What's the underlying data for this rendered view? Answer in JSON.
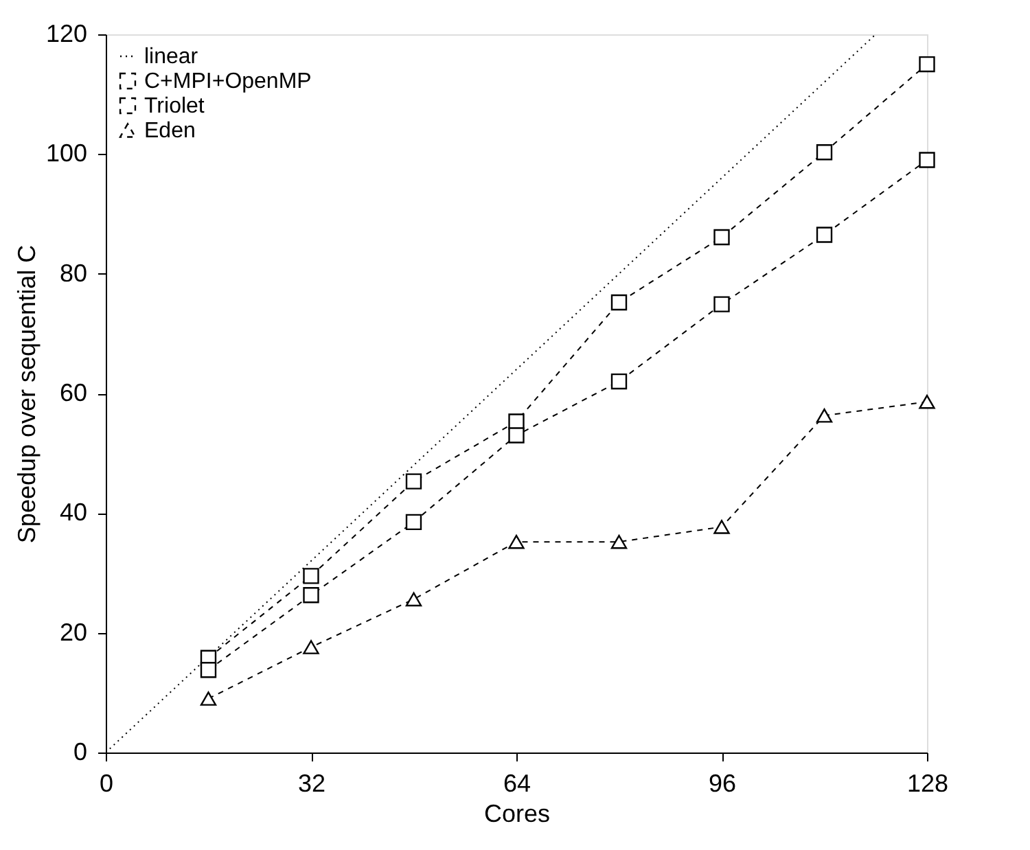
{
  "chart_data": {
    "type": "line",
    "xlabel": "Cores",
    "ylabel": "Speedup over sequential C",
    "xlim": [
      0,
      128
    ],
    "xticks": [
      0,
      32,
      64,
      96,
      128
    ],
    "ylim": [
      0,
      120
    ],
    "yticks": [
      0,
      20,
      40,
      60,
      80,
      100,
      120
    ],
    "grid": false,
    "legend": "top left",
    "series": [
      {
        "name": "linear",
        "color": "#000000",
        "x": [
          0,
          120
        ],
        "values": [
          0,
          120
        ],
        "line_style": "dotted",
        "marker": "none"
      },
      {
        "name": "C+MPI+OpenMP",
        "color": "#000000",
        "x": [
          16,
          32,
          48,
          64,
          80,
          96,
          112,
          128
        ],
        "values": [
          15.8,
          29.5,
          45.3,
          55.3,
          75.2,
          86.1,
          100.3,
          115
        ],
        "line_style": "dashed",
        "marker": "square"
      },
      {
        "name": "Triolet",
        "color": "#000000",
        "x": [
          16,
          32,
          48,
          64,
          80,
          96,
          112,
          128
        ],
        "values": [
          13.8,
          26.3,
          38.5,
          53,
          62,
          74.9,
          86.5,
          99
        ],
        "line_style": "dashed",
        "marker": "square"
      },
      {
        "name": "Eden",
        "color": "#000000",
        "x": [
          16,
          32,
          48,
          64,
          80,
          96,
          112,
          128
        ],
        "values": [
          9,
          17.6,
          25.6,
          35.2,
          35.2,
          37.7,
          56.3,
          58.6
        ],
        "line_style": "dashed",
        "marker": "triangle"
      }
    ]
  }
}
